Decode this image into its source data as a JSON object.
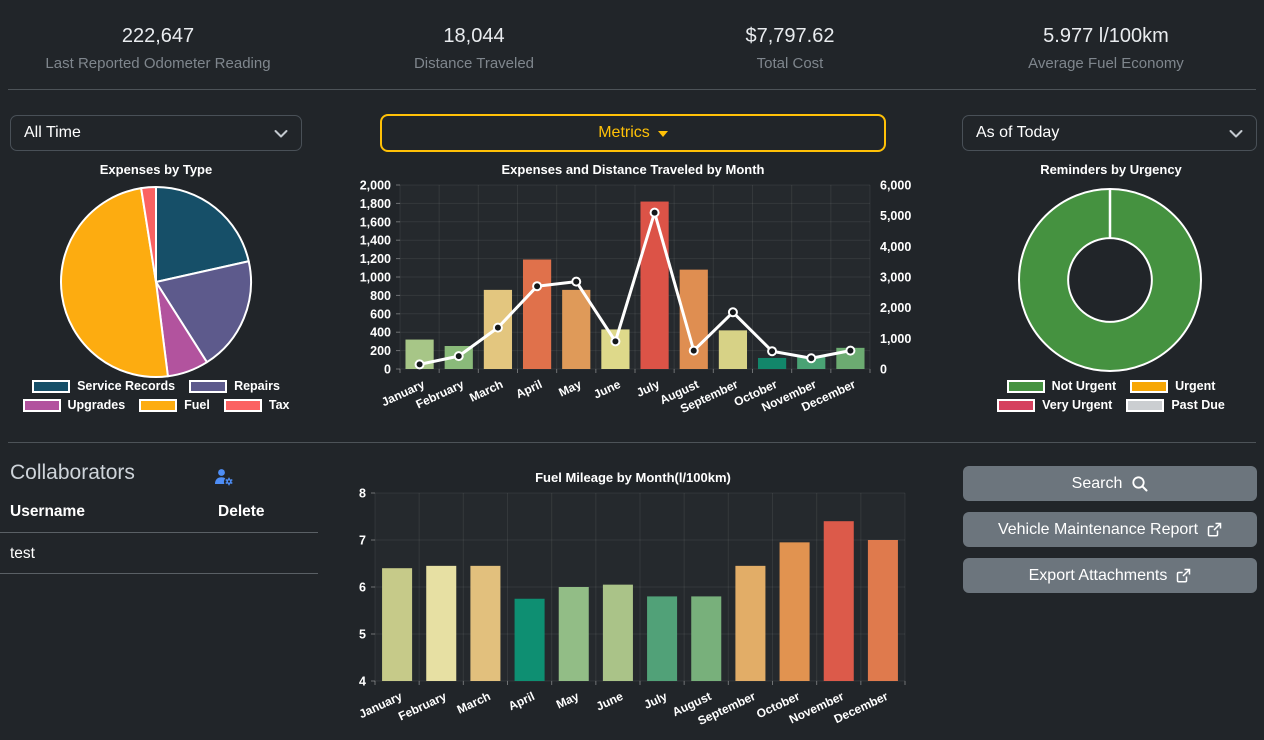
{
  "stats": [
    {
      "value": "222,647",
      "label": "Last Reported Odometer Reading"
    },
    {
      "value": "18,044",
      "label": "Distance Traveled"
    },
    {
      "value": "$7,797.62",
      "label": "Total Cost"
    },
    {
      "value": "5.977 l/100km",
      "label": "Average Fuel Economy"
    }
  ],
  "controls": {
    "time_filter": "All Time",
    "metrics_button": "Metrics",
    "date_filter": "As of Today"
  },
  "collaborators": {
    "title": "Collaborators",
    "add_icon": "person-gear-icon",
    "columns": [
      "Username",
      "Delete"
    ],
    "rows": [
      {
        "username": "test"
      }
    ]
  },
  "actions": [
    {
      "label": "Search",
      "icon": "search-icon"
    },
    {
      "label": "Vehicle Maintenance Report",
      "icon": "external-link-icon"
    },
    {
      "label": "Export Attachments",
      "icon": "external-link-icon"
    }
  ],
  "colors": {
    "background": "#212529",
    "accent_gold": "#ffc107",
    "button_gray": "#6c757d",
    "icon_blue": "#4e8ef7",
    "line_white": "#ffffff"
  },
  "chart_data": [
    {
      "type": "pie",
      "title": "Expenses by Type",
      "legend_position": "bottom",
      "slices": [
        {
          "label": "Service Records",
          "percent": 21.5,
          "color": "#164f68"
        },
        {
          "label": "Repairs",
          "percent": 19.5,
          "color": "#5d5a8c"
        },
        {
          "label": "Upgrades",
          "percent": 7,
          "color": "#b2539e"
        },
        {
          "label": "Fuel",
          "percent": 49.5,
          "color": "#fdac10"
        },
        {
          "label": "Tax",
          "percent": 2.5,
          "color": "#fb6262"
        }
      ]
    },
    {
      "type": "bar+line",
      "title": "Expenses and Distance Traveled by Month",
      "categories": [
        "January",
        "February",
        "March",
        "April",
        "May",
        "June",
        "July",
        "August",
        "September",
        "October",
        "November",
        "December"
      ],
      "bar_series": {
        "name": "Expenses",
        "axis": "left",
        "values": [
          320,
          250,
          860,
          1190,
          860,
          430,
          1820,
          1080,
          420,
          120,
          130,
          230
        ],
        "colors": [
          "#a7c687",
          "#8aba7a",
          "#e3c67f",
          "#e0714b",
          "#df9a59",
          "#ded98a",
          "#dc5347",
          "#df8e51",
          "#d7d286",
          "#12866a",
          "#4aa274",
          "#6cab71"
        ]
      },
      "line_series": {
        "name": "Distance Traveled",
        "axis": "right",
        "values": [
          150,
          420,
          1350,
          2700,
          2850,
          900,
          5100,
          600,
          1850,
          580,
          350,
          600
        ],
        "color": "#ffffff"
      },
      "left_axis": {
        "min": 0,
        "max": 2000,
        "ticks": [
          "0",
          "200",
          "400",
          "600",
          "800",
          "1,000",
          "1,200",
          "1,400",
          "1,600",
          "1,800",
          "2,000"
        ]
      },
      "right_axis": {
        "min": 0,
        "max": 6000,
        "ticks": [
          "0",
          "1,000",
          "2,000",
          "3,000",
          "4,000",
          "5,000",
          "6,000"
        ]
      },
      "grid": true
    },
    {
      "type": "pie",
      "subtype": "donut",
      "title": "Reminders by Urgency",
      "legend_position": "bottom",
      "slices": [
        {
          "label": "Not Urgent",
          "percent": 100,
          "color": "#459240"
        },
        {
          "label": "Urgent",
          "percent": 0,
          "color": "#f7a706"
        },
        {
          "label": "Very Urgent",
          "percent": 0,
          "color": "#d5415e"
        },
        {
          "label": "Past Due",
          "percent": 0,
          "color": "#cbced1"
        }
      ]
    },
    {
      "type": "bar",
      "title": "Fuel Mileage by Month(l/100km)",
      "categories": [
        "January",
        "February",
        "March",
        "April",
        "May",
        "June",
        "July",
        "August",
        "September",
        "October",
        "November",
        "December"
      ],
      "values": [
        6.4,
        6.45,
        6.45,
        5.75,
        6.0,
        6.05,
        5.8,
        5.8,
        6.45,
        6.95,
        7.4,
        7.0
      ],
      "colors": [
        "#c6ca89",
        "#e7e0a3",
        "#e2c07d",
        "#0e8f72",
        "#92bd86",
        "#aac388",
        "#51a178",
        "#78b07b",
        "#e2ad67",
        "#e19350",
        "#dc5a4a",
        "#df7a4d"
      ],
      "y_axis": {
        "min": 4,
        "max": 8,
        "ticks": [
          "4",
          "5",
          "6",
          "7",
          "8"
        ]
      },
      "grid": true
    }
  ]
}
